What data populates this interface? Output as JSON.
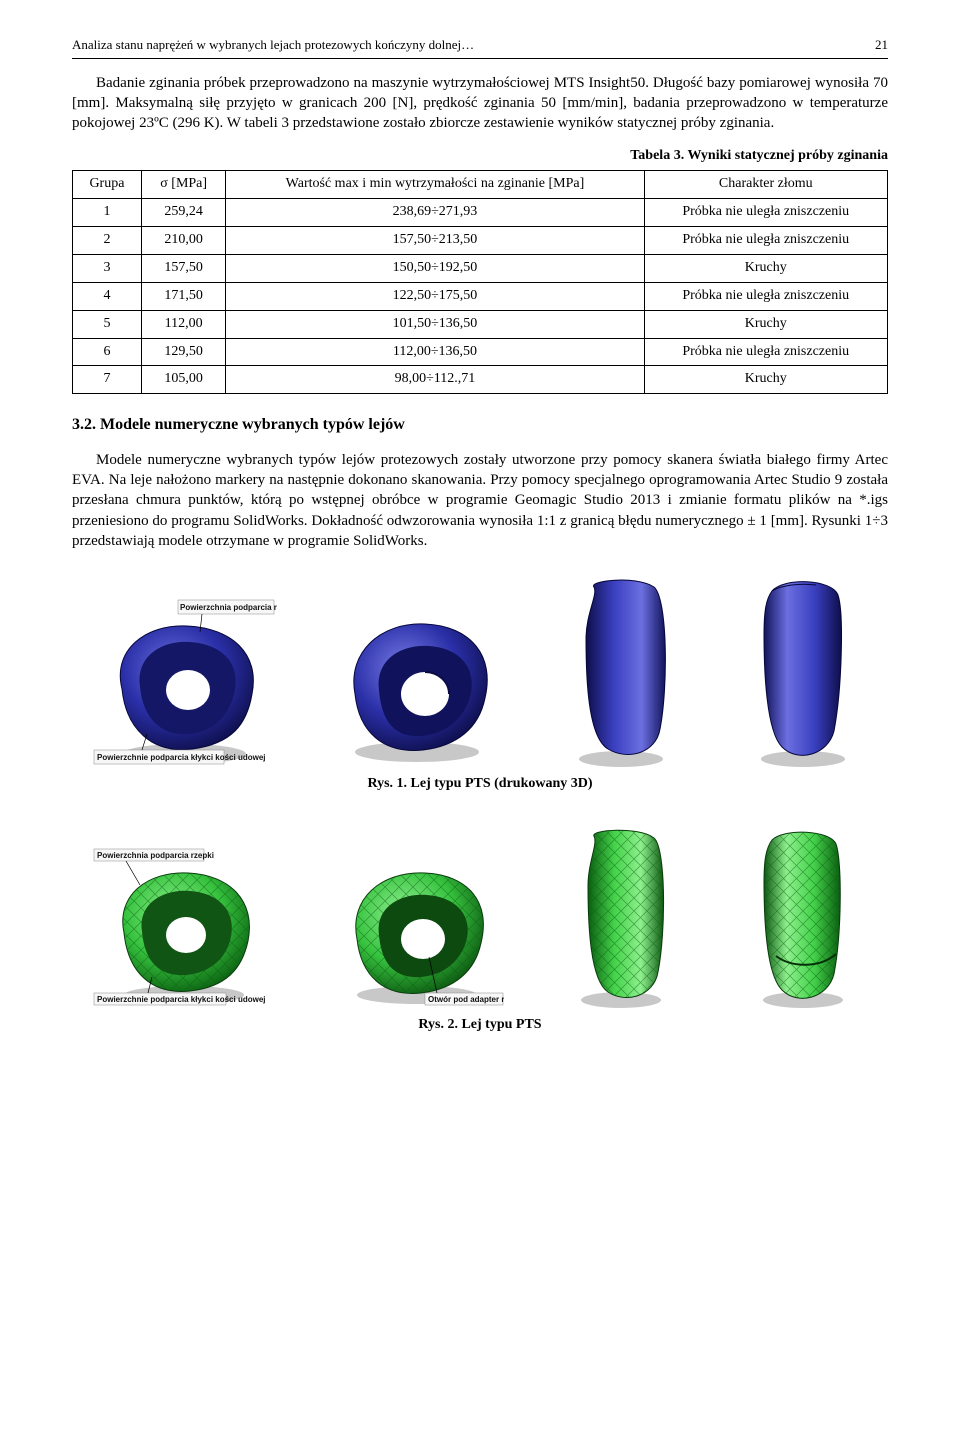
{
  "running_head": {
    "title": "Analiza stanu naprężeń w wybranych lejach protezowych kończyny dolnej…",
    "page_number": "21"
  },
  "intro_para": "Badanie zginania próbek przeprowadzono na maszynie wytrzymałościowej MTS Insight50. Długość bazy pomiarowej wynosiła 70 [mm]. Maksymalną siłę przyjęto w granicach 200 [N], prędkość zginania 50 [mm/min], badania przeprowadzono w temperaturze pokojowej 23ºC (296 K). W tabeli 3 przedstawione zostało zbiorcze zestawienie wyników statycznej próby zginania.",
  "table3": {
    "caption": "Tabela 3. Wyniki statycznej próby zginania",
    "columns": [
      "Grupa",
      "σ [MPa]",
      "Wartość max i min wytrzymałości na zginanie [MPa]",
      "Charakter złomu"
    ],
    "rows": [
      [
        "1",
        "259,24",
        "238,69÷271,93",
        "Próbka nie uległa zniszczeniu"
      ],
      [
        "2",
        "210,00",
        "157,50÷213,50",
        "Próbka nie uległa zniszczeniu"
      ],
      [
        "3",
        "157,50",
        "150,50÷192,50",
        "Kruchy"
      ],
      [
        "4",
        "171,50",
        "122,50÷175,50",
        "Próbka nie uległa zniszczeniu"
      ],
      [
        "5",
        "112,00",
        "101,50÷136,50",
        "Kruchy"
      ],
      [
        "6",
        "129,50",
        "112,00÷136,50",
        "Próbka nie uległa zniszczeniu"
      ],
      [
        "7",
        "105,00",
        "98,00÷112.,71",
        "Kruchy"
      ]
    ]
  },
  "section32_heading": "3.2. Modele numeryczne wybranych typów lejów",
  "section32_para": "Modele numeryczne wybranych typów lejów protezowych zostały utworzone przy pomocy skanera światła białego  firmy Artec EVA. Na leje nałożono markery na następnie dokonano skanowania. Przy pomocy specjalnego oprogramowania Artec Studio 9 została przesłana chmura punktów, którą po wstępnej obróbce w programie Geomagic Studio 2013 i zmianie formatu plików na *.igs przeniesiono do programu SolidWorks. Dokładność odwzorowania wynosiła 1:1 z granicą błędu numerycznego ± 1 [mm]. Rysunki 1÷3 przedstawiają modele otrzymane w programie SolidWorks.",
  "fig1": {
    "caption": "Rys. 1. Lej typu PTS (drukowany 3D)",
    "colors": {
      "cup_fill": "#2a2fa7",
      "cup_dark": "#0d0e4a",
      "hole_fill": "#ffffff",
      "shadow": "#9a9a9a"
    },
    "label_top": "Powierzchnia podparcia rzepki",
    "label_bottom": "Powierzchnie podparcia kłykci kości udowej"
  },
  "fig2": {
    "caption": "Rys. 2. Lej typu PTS",
    "colors": {
      "mesh_fill": "#36c23e",
      "mesh_line": "#0a5e10",
      "edge_dark": "#083b0b",
      "hole_fill": "#ffffff",
      "shadow": "#9a9a9a"
    },
    "label_top": "Powierzchnia podparcia rzepki",
    "label_bottom_left": "Powierzchnie podparcia kłykci kości udowej",
    "label_bottom_mid": "Otwór pod adapter rurowy"
  }
}
